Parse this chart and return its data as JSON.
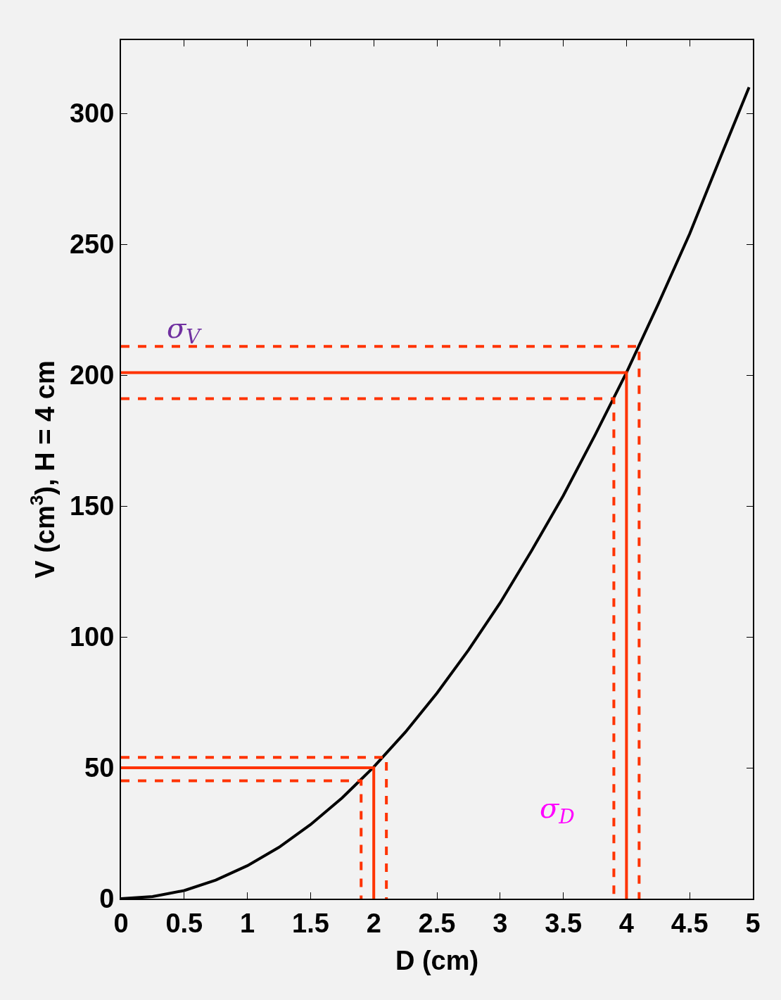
{
  "chart_data": {
    "type": "line",
    "xlabel": "D (cm)",
    "ylabel": "V (cm$^{3}$), H = 4 cm",
    "xlim": [
      0,
      5
    ],
    "ylim": [
      0,
      328
    ],
    "xticks": [
      0,
      0.5,
      1,
      1.5,
      2,
      2.5,
      3,
      3.5,
      4,
      4.5,
      5
    ],
    "yticks": [
      0,
      50,
      100,
      150,
      200,
      250,
      300
    ],
    "marker": "none",
    "series": [
      {
        "color": "#000000",
        "line_style": "solid",
        "x": [
          0,
          0.25,
          0.5,
          0.75,
          1,
          1.25,
          1.5,
          1.75,
          2,
          2.25,
          2.5,
          2.75,
          3,
          3.25,
          3.5,
          3.75,
          4,
          4.25,
          4.5,
          4.75,
          4.97
        ],
        "values": [
          0,
          0.8,
          3.1,
          7.1,
          12.6,
          19.6,
          28.3,
          38.5,
          50.3,
          63.6,
          78.5,
          95,
          113,
          133,
          154,
          177,
          201,
          227,
          254,
          284,
          310
        ]
      },
      {
        "color": "#ff3300",
        "line_style": "solid",
        "x": [
          0,
          4,
          4
        ],
        "values": [
          201,
          201,
          0
        ]
      },
      {
        "color": "#ff3300",
        "line_style": "dashed",
        "x": [
          0,
          4.1,
          4.1
        ],
        "values": [
          211,
          211,
          0
        ]
      },
      {
        "color": "#ff3300",
        "line_style": "dashed",
        "x": [
          0,
          3.9,
          3.9
        ],
        "values": [
          191,
          191,
          0
        ]
      },
      {
        "color": "#ff3300",
        "line_style": "solid",
        "x": [
          0,
          2,
          2
        ],
        "values": [
          50,
          50,
          0
        ]
      },
      {
        "color": "#ff3300",
        "line_style": "dashed",
        "x": [
          0,
          2.1,
          2.1
        ],
        "values": [
          54,
          54,
          0
        ]
      },
      {
        "color": "#ff3300",
        "line_style": "dashed",
        "x": [
          0,
          1.9,
          1.9
        ],
        "values": [
          45,
          45,
          0
        ]
      }
    ],
    "annotations": [
      "σ$_{V}$",
      "σ$_{D}$"
    ]
  }
}
